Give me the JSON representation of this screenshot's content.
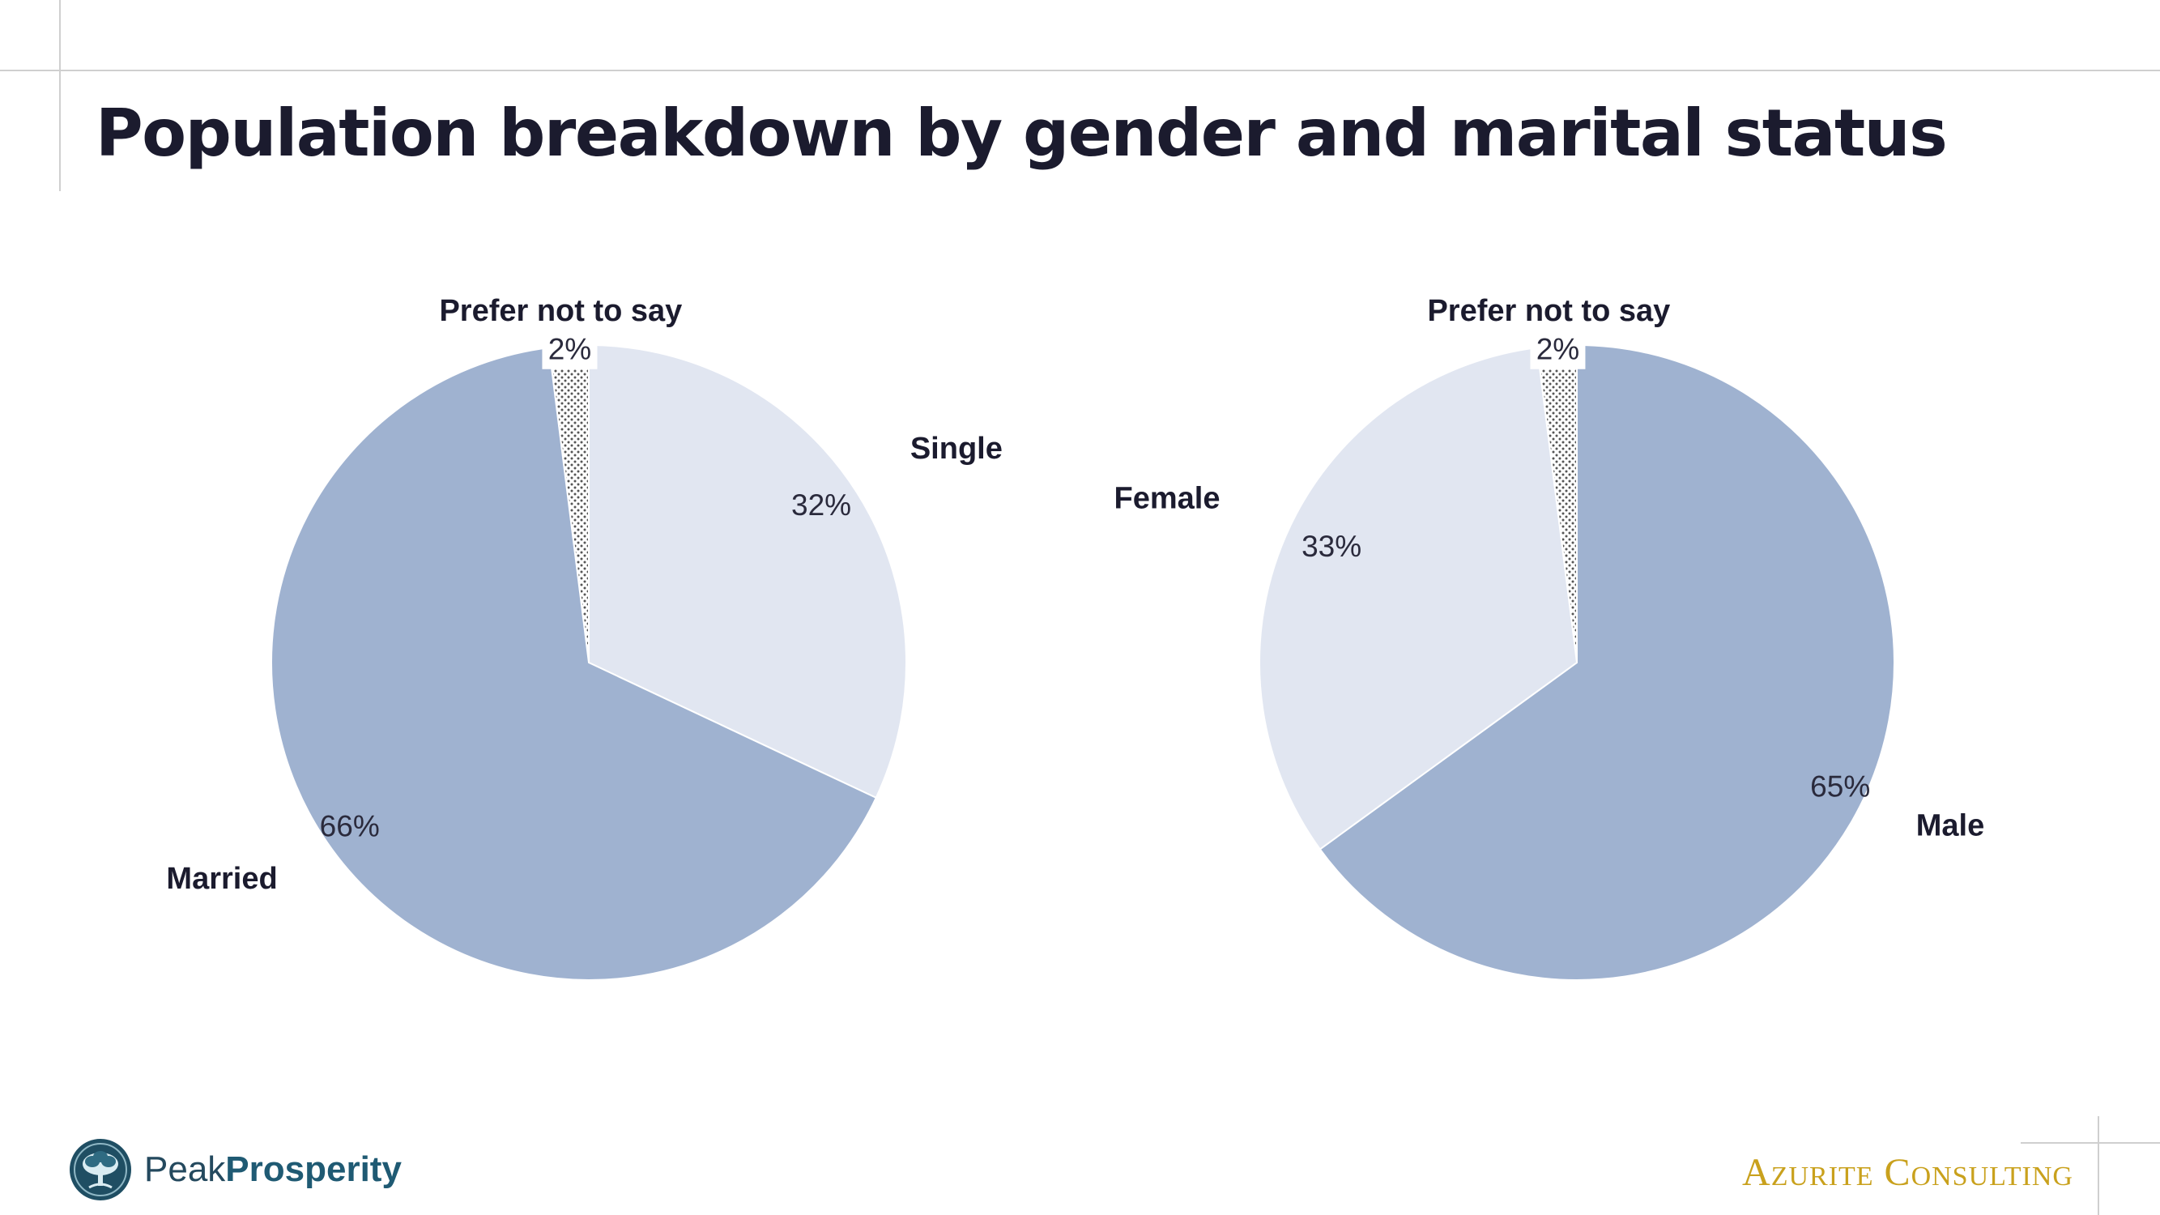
{
  "title": "Population breakdown by gender and marital status",
  "colors": {
    "dark_slice": "#9fb2d0",
    "light_slice": "#e1e6f1",
    "pattern_slice": "#ffffff",
    "title": "#1b1b2e",
    "brand_left": "#24495e",
    "brand_right": "#c9a11d"
  },
  "chart_data": [
    {
      "type": "pie",
      "title": "",
      "slices": [
        {
          "label": "Prefer not to say",
          "value": 2,
          "display": "2%",
          "fill": "pattern"
        },
        {
          "label": "Single",
          "value": 32,
          "display": "32%",
          "fill": "#e1e6f1"
        },
        {
          "label": "Married",
          "value": 66,
          "display": "66%",
          "fill": "#9fb2d0"
        }
      ],
      "legend": "none"
    },
    {
      "type": "pie",
      "title": "",
      "slices": [
        {
          "label": "Prefer not to say",
          "value": 2,
          "display": "2%",
          "fill": "pattern"
        },
        {
          "label": "Male",
          "value": 65,
          "display": "65%",
          "fill": "#9fb2d0"
        },
        {
          "label": "Female",
          "value": 33,
          "display": "33%",
          "fill": "#e1e6f1"
        }
      ],
      "legend": "none"
    }
  ],
  "footer": {
    "left_logo_regular": "Peak",
    "left_logo_bold": "Prosperity",
    "left_logo_icon": "tree-icon",
    "right_logo": "Azurite Consulting"
  }
}
